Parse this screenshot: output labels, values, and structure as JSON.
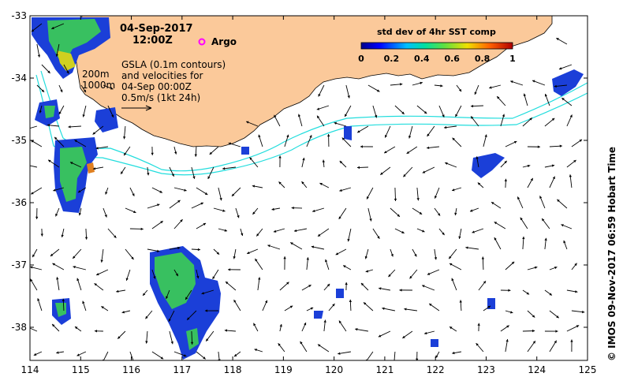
{
  "header": {
    "date": "04-Sep-2017",
    "time": "12:00Z"
  },
  "legend": {
    "argo_label": "Argo",
    "argo_color": "#ff00ff",
    "depth_labels": [
      "200m",
      "1000m"
    ],
    "gsla_lines": [
      "GSLA (0.1m contours)",
      "and velocities for",
      "04-Sep 00:00Z",
      "0.5m/s (1kt 24h)"
    ]
  },
  "colorbar": {
    "title": "std dev of 4hr SST comp",
    "ticks": [
      "0",
      "0.2",
      "0.4",
      "0.6",
      "0.8",
      "1"
    ]
  },
  "axes": {
    "x_ticks": [
      "114",
      "115",
      "116",
      "117",
      "118",
      "119",
      "120",
      "121",
      "122",
      "123",
      "124",
      "125"
    ],
    "y_ticks": [
      "-33",
      "-34",
      "-35",
      "-36",
      "-37",
      "-38"
    ]
  },
  "credit": "© IMOS 09-Nov-2017 06:59 Hobart Time",
  "colors": {
    "land": "#fbc99a",
    "isobath": "#22dddd",
    "sst_low": "#1010d0",
    "sst_mid": "#20c040",
    "sst_high": "#d0d020"
  }
}
